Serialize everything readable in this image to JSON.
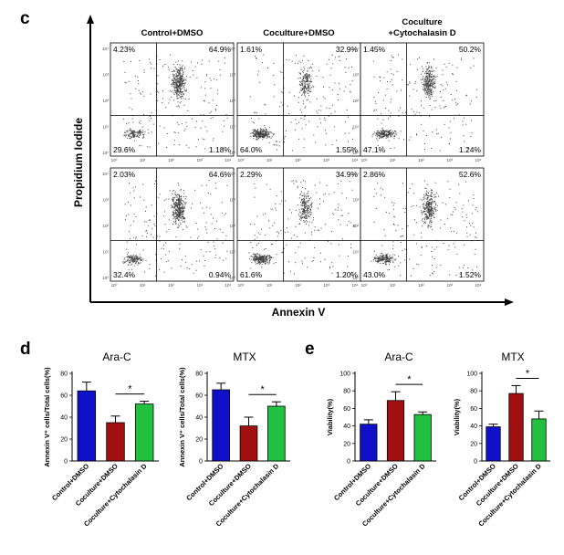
{
  "panel_c": {
    "label": "c",
    "y_axis_label": "Propidium Iodide",
    "x_axis_label": "Annexin V",
    "column_titles": [
      {
        "lines": [
          "Control+DMSO"
        ]
      },
      {
        "lines": [
          "Coculture+DMSO"
        ]
      },
      {
        "lines": [
          "Coculture",
          "+Cytochalasin D"
        ]
      }
    ],
    "tick_labels_y": [
      "10⁴",
      "10³",
      "10²",
      "10¹",
      "10⁰"
    ],
    "tick_labels_x": [
      "10⁰",
      "10¹",
      "10²",
      "10³",
      "10⁴"
    ],
    "plots": [
      {
        "row": 0,
        "col": 0,
        "ul": "4.23%",
        "ur": "64.9%",
        "ll": "29.6%",
        "lr": "1.18%"
      },
      {
        "row": 0,
        "col": 1,
        "ul": "1.61%",
        "ur": "32.9%",
        "ll": "64.0%",
        "lr": "1.55%"
      },
      {
        "row": 0,
        "col": 2,
        "ul": "1.45%",
        "ur": "50.2%",
        "ll": "47.1%",
        "lr": "1.24%"
      },
      {
        "row": 1,
        "col": 0,
        "ul": "2.03%",
        "ur": "64.6%",
        "ll": "32.4%",
        "lr": "0.94%"
      },
      {
        "row": 1,
        "col": 1,
        "ul": "2.29%",
        "ur": "34.9%",
        "ll": "61.6%",
        "lr": "1.20%"
      },
      {
        "row": 1,
        "col": 2,
        "ul": "2.86%",
        "ur": "52.6%",
        "ll": "43.0%",
        "lr": "1.52%"
      }
    ]
  },
  "panel_d": {
    "label": "d"
  },
  "panel_e": {
    "label": "e"
  },
  "chart_data": [
    {
      "type": "bar",
      "panel": "d",
      "title": "Ara-C",
      "ylabel": "Annexin V⁺ cells/Total cells(%)",
      "ylim": [
        0,
        80
      ],
      "yticks": [
        0,
        20,
        40,
        60,
        80
      ],
      "categories": [
        "Control+DMSO",
        "Coculture+DMSO",
        "Coculture+Cytochalasin D"
      ],
      "values": [
        64,
        35,
        52
      ],
      "errors": [
        8,
        6,
        2.5
      ],
      "colors": [
        "#1010c8",
        "#a01010",
        "#22c040"
      ],
      "significance": {
        "between": [
          1,
          2
        ],
        "label": "*"
      }
    },
    {
      "type": "bar",
      "panel": "d",
      "title": "MTX",
      "ylabel": "Annexin V⁺ cells/Total cells(%)",
      "ylim": [
        0,
        80
      ],
      "yticks": [
        0,
        20,
        40,
        60,
        80
      ],
      "categories": [
        "Control+DMSO",
        "Coculture+DMSO",
        "Coculture+Cytochalasin D"
      ],
      "values": [
        65,
        32,
        50
      ],
      "errors": [
        6,
        8,
        4
      ],
      "colors": [
        "#1010c8",
        "#a01010",
        "#22c040"
      ],
      "significance": {
        "between": [
          1,
          2
        ],
        "label": "*"
      }
    },
    {
      "type": "bar",
      "panel": "e",
      "title": "Ara-C",
      "ylabel": "Viability(%)",
      "ylim": [
        0,
        100
      ],
      "yticks": [
        0,
        20,
        40,
        60,
        80,
        100
      ],
      "categories": [
        "Control+DMSO",
        "Coculture+DMSO",
        "Coculture+Cytochalasin D"
      ],
      "values": [
        42,
        69,
        53
      ],
      "errors": [
        5,
        10,
        3
      ],
      "colors": [
        "#1010c8",
        "#a01010",
        "#22c040"
      ],
      "significance": {
        "between": [
          1,
          2
        ],
        "label": "*"
      }
    },
    {
      "type": "bar",
      "panel": "e",
      "title": "MTX",
      "ylabel": "Viability(%)",
      "ylim": [
        0,
        100
      ],
      "yticks": [
        0,
        20,
        40,
        60,
        80,
        100
      ],
      "categories": [
        "Control+DMSO",
        "Coculture+DMSO",
        "Coculture+Cytochalasin D"
      ],
      "values": [
        39,
        77,
        48
      ],
      "errors": [
        3,
        9,
        9
      ],
      "colors": [
        "#1010c8",
        "#a01010",
        "#22c040"
      ],
      "significance": {
        "between": [
          1,
          2
        ],
        "label": "*"
      }
    }
  ]
}
